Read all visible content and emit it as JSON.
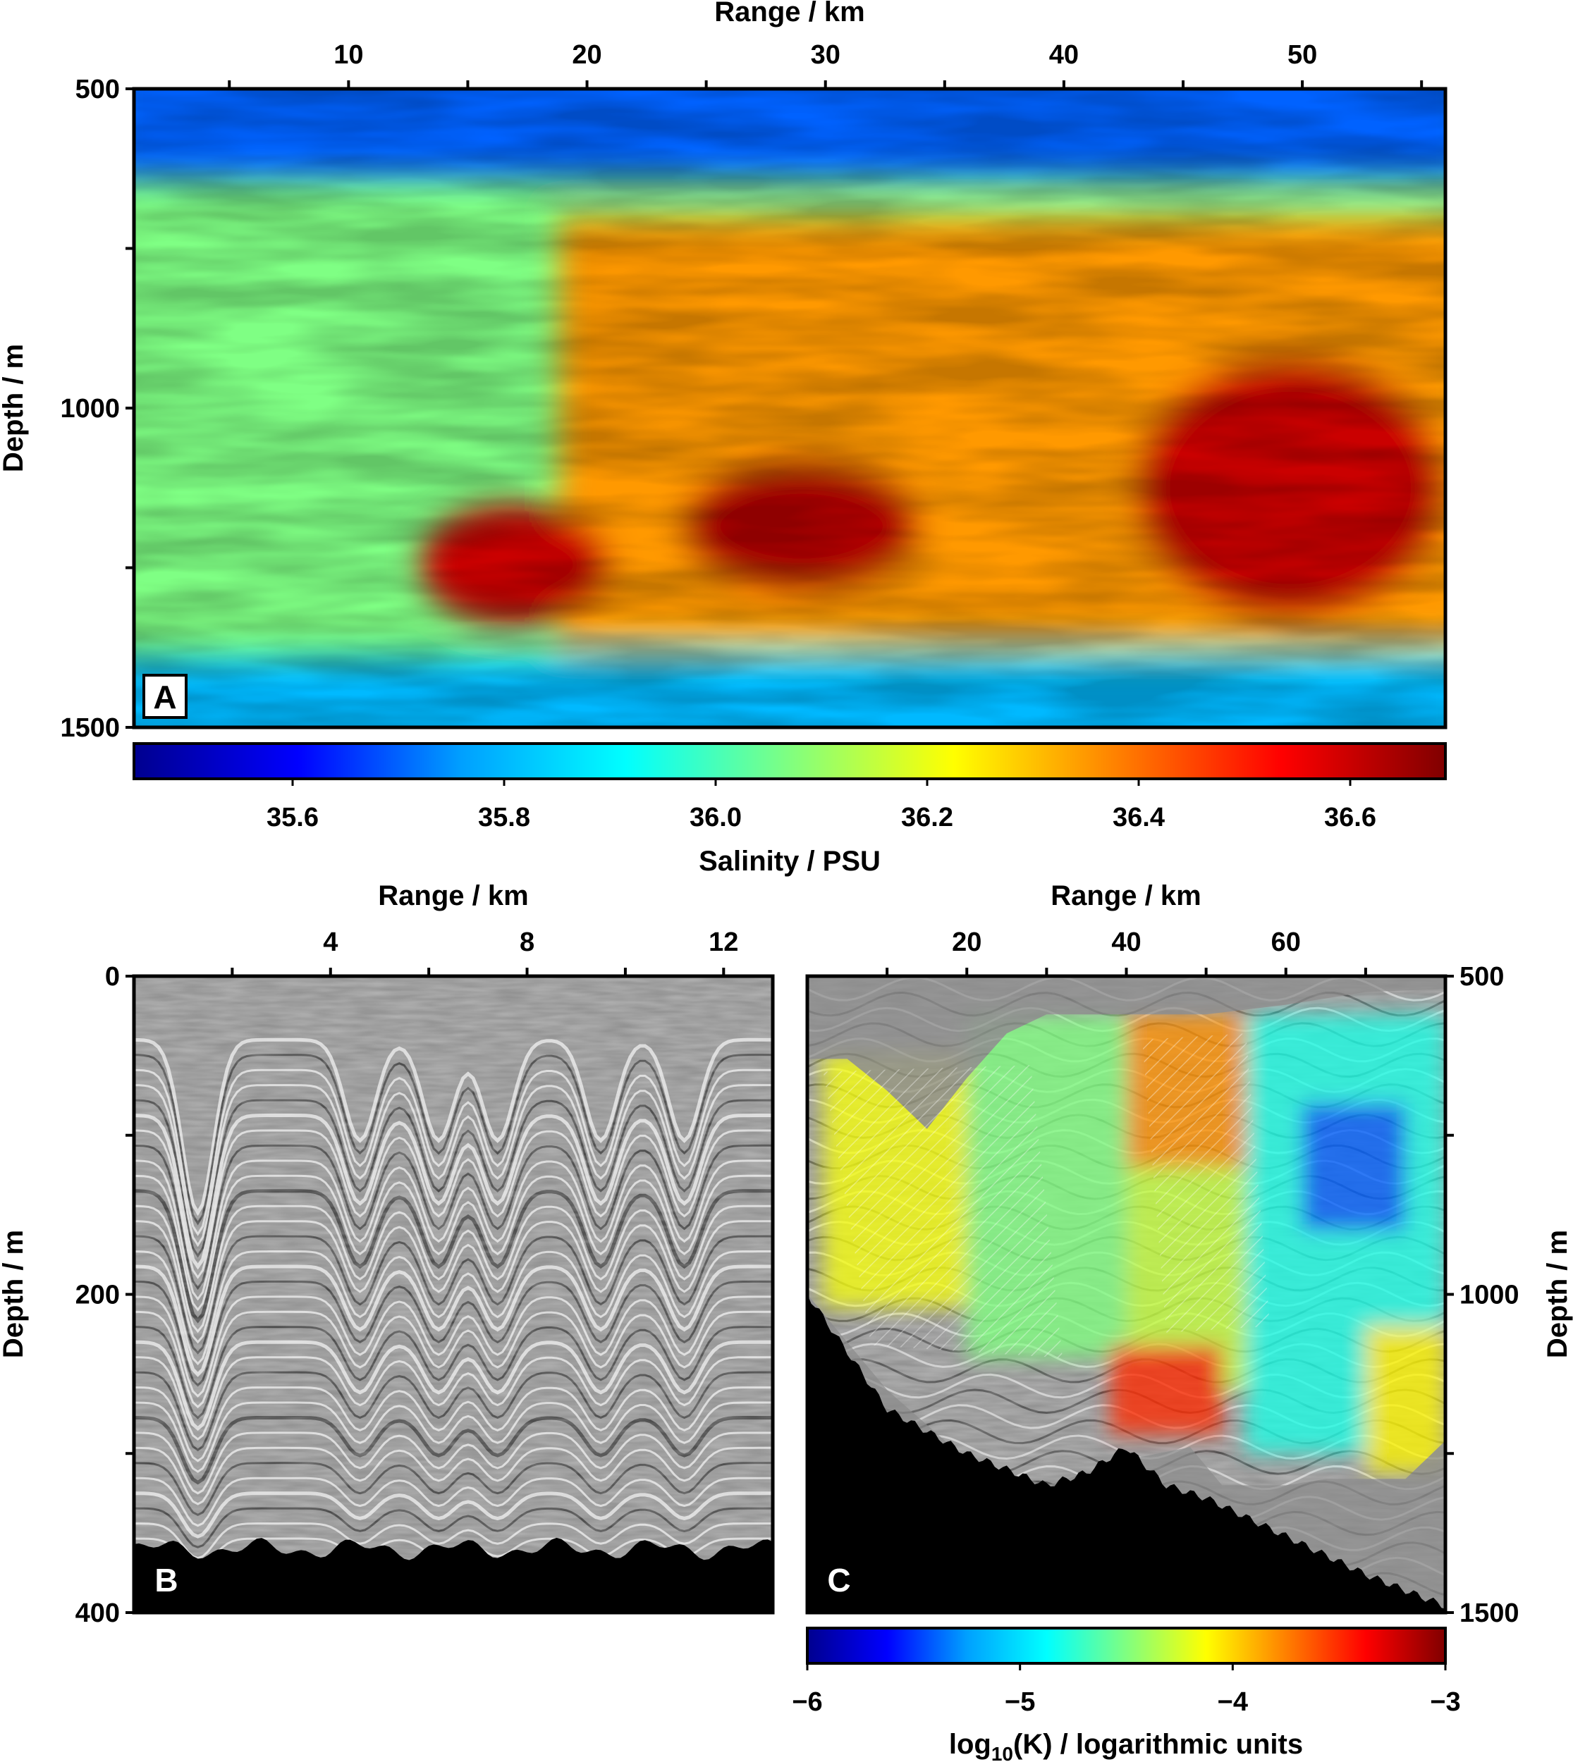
{
  "chart_data": [
    {
      "panel": "A",
      "type": "heatmap",
      "xlabel": "Range / km",
      "ylabel": "Depth / m",
      "x_ticks": [
        10,
        20,
        30,
        40,
        50
      ],
      "y_ticks": [
        500,
        1000,
        1500
      ],
      "xlim": [
        1,
        56
      ],
      "ylim": [
        500,
        1500
      ],
      "colorbar": {
        "label": "Salinity / PSU",
        "ticks": [
          "35.6",
          "35.8",
          "36.0",
          "36.2",
          "36.4",
          "36.6"
        ],
        "range": [
          35.45,
          36.69
        ],
        "colormap": [
          "#00008f",
          "#0000ff",
          "#00a0ff",
          "#00ffff",
          "#80ff80",
          "#ffff00",
          "#ff8000",
          "#ff0000",
          "#800000"
        ]
      },
      "features": [
        {
          "name": "fresh upper layer",
          "x": [
            1,
            56
          ],
          "depth": [
            500,
            640
          ],
          "value": 35.7
        },
        {
          "name": "fresh lower layer",
          "x": [
            1,
            56
          ],
          "depth": [
            1390,
            1500
          ],
          "value": 35.8
        },
        {
          "name": "warm intrusion",
          "x": [
            20,
            56
          ],
          "depth": [
            700,
            1300
          ],
          "value": 36.35
        },
        {
          "name": "eddy core",
          "x": [
            43,
            56
          ],
          "depth": [
            920,
            1330
          ],
          "value": 36.6
        },
        {
          "name": "lens",
          "x": [
            13,
            21
          ],
          "depth": [
            1150,
            1340
          ],
          "value": 36.6
        },
        {
          "name": "lens",
          "x": [
            24,
            34
          ],
          "depth": [
            1080,
            1290
          ],
          "value": 36.62
        }
      ]
    },
    {
      "panel": "B",
      "type": "heatmap",
      "xlabel": "Range / km",
      "ylabel": "Depth / m",
      "x_ticks": [
        4,
        8,
        12
      ],
      "y_ticks": [
        0,
        200,
        400
      ],
      "xlim": [
        0,
        13
      ],
      "ylim": [
        0,
        400
      ],
      "seabed_depth": 360
    },
    {
      "panel": "C",
      "type": "heatmap",
      "xlabel": "Range / km",
      "ylabel": "Depth / m",
      "x_ticks": [
        20,
        40,
        60
      ],
      "y_ticks": [
        500,
        1000,
        1500
      ],
      "xlim": [
        0,
        80
      ],
      "ylim": [
        500,
        1500
      ],
      "colorbar": {
        "label_main": "log",
        "label_sub": "10",
        "label_rest": "(K) / logarithmic units",
        "ticks": [
          "−6",
          "−5",
          "−4",
          "−3"
        ],
        "range": [
          -6,
          -3
        ],
        "colormap": [
          "#00008f",
          "#0000ff",
          "#00a0ff",
          "#00ffff",
          "#80ff80",
          "#ffff00",
          "#ff8000",
          "#ff0000",
          "#800000"
        ]
      },
      "seabed": {
        "x": [
          0,
          10,
          20,
          30,
          35,
          40,
          45,
          50,
          60,
          70,
          80
        ],
        "depth": [
          1000,
          1180,
          1250,
          1300,
          1280,
          1240,
          1300,
          1320,
          1380,
          1440,
          1490
        ]
      }
    }
  ]
}
